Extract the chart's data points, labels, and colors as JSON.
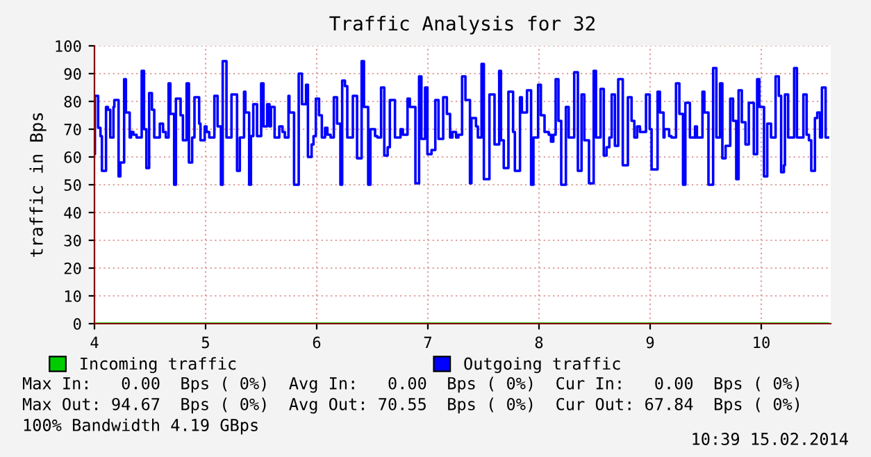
{
  "chart_data": {
    "type": "step",
    "title": "Traffic Analysis for 32",
    "ylabel": "traffic in Bps",
    "xlim": [
      4,
      10.625
    ],
    "xticks": [
      4,
      5,
      6,
      7,
      8,
      9,
      10
    ],
    "ylim": [
      0,
      100
    ],
    "yticks": [
      0,
      10,
      20,
      30,
      40,
      50,
      60,
      70,
      80,
      90,
      100
    ],
    "grid": true,
    "legend": "bottom",
    "series": [
      {
        "name": "Incoming traffic",
        "color": "#00cc00",
        "x": [
          4,
          10.6
        ],
        "values": [
          0,
          0
        ]
      },
      {
        "name": "Outgoing traffic",
        "color": "#0000ff",
        "x": [
          4.0,
          4.004,
          4.033,
          4.054,
          4.067,
          4.104,
          4.121,
          4.142,
          4.171,
          4.179,
          4.217,
          4.233,
          4.267,
          4.283,
          4.317,
          4.329,
          4.35,
          4.379,
          4.425,
          4.446,
          4.467,
          4.492,
          4.517,
          4.538,
          4.588,
          4.617,
          4.642,
          4.667,
          4.683,
          4.717,
          4.733,
          4.775,
          4.796,
          4.829,
          4.85,
          4.879,
          4.9,
          4.942,
          4.954,
          4.992,
          5.008,
          5.033,
          5.079,
          5.108,
          5.138,
          5.154,
          5.188,
          5.233,
          5.283,
          5.308,
          5.346,
          5.358,
          5.392,
          5.408,
          5.429,
          5.463,
          5.5,
          5.521,
          5.554,
          5.575,
          5.588,
          5.621,
          5.663,
          5.692,
          5.713,
          5.746,
          5.754,
          5.796,
          5.838,
          5.867,
          5.904,
          5.921,
          5.954,
          5.971,
          5.992,
          6.021,
          6.046,
          6.075,
          6.096,
          6.125,
          6.154,
          6.183,
          6.213,
          6.229,
          6.254,
          6.275,
          6.325,
          6.363,
          6.404,
          6.425,
          6.463,
          6.483,
          6.525,
          6.546,
          6.579,
          6.608,
          6.638,
          6.658,
          6.704,
          6.754,
          6.775,
          6.817,
          6.838,
          6.888,
          6.921,
          6.942,
          6.975,
          6.996,
          7.033,
          7.067,
          7.096,
          7.138,
          7.171,
          7.2,
          7.221,
          7.254,
          7.275,
          7.308,
          7.338,
          7.379,
          7.392,
          7.433,
          7.45,
          7.483,
          7.504,
          7.554,
          7.6,
          7.642,
          7.658,
          7.683,
          7.725,
          7.767,
          7.783,
          7.829,
          7.846,
          7.892,
          7.929,
          7.95,
          7.992,
          8.017,
          8.05,
          8.088,
          8.108,
          8.129,
          8.15,
          8.175,
          8.2,
          8.242,
          8.267,
          8.317,
          8.35,
          8.383,
          8.408,
          8.45,
          8.492,
          8.513,
          8.554,
          8.583,
          8.608,
          8.633,
          8.654,
          8.683,
          8.713,
          8.754,
          8.8,
          8.833,
          8.858,
          8.883,
          8.908,
          8.963,
          8.996,
          9.013,
          9.067,
          9.088,
          9.121,
          9.129,
          9.171,
          9.192,
          9.233,
          9.263,
          9.296,
          9.317,
          9.358,
          9.404,
          9.421,
          9.471,
          9.488,
          9.525,
          9.567,
          9.596,
          9.629,
          9.65,
          9.679,
          9.721,
          9.746,
          9.775,
          9.796,
          9.825,
          9.858,
          9.888,
          9.933,
          9.963,
          9.983,
          10.025,
          10.054,
          10.088,
          10.129,
          10.158,
          10.179,
          10.204,
          10.213,
          10.242,
          10.296,
          10.321,
          10.379,
          10.408,
          10.429,
          10.45,
          10.483,
          10.504,
          10.529,
          10.546,
          10.579,
          10.6
        ],
        "values": [
          61,
          82,
          70.5,
          67.5,
          55,
          78,
          77,
          67,
          78,
          80.5,
          53,
          58,
          88,
          76,
          67,
          69,
          68,
          67,
          91,
          70,
          56,
          83,
          77,
          67,
          72,
          69,
          67,
          86.5,
          75.5,
          50,
          81,
          75,
          66,
          86.5,
          58,
          67,
          81.5,
          72,
          66,
          71,
          69,
          67,
          82,
          71,
          50,
          94.5,
          67,
          82.5,
          55,
          67,
          83.5,
          76,
          50,
          67.5,
          79,
          67.5,
          86.5,
          71,
          79,
          71,
          78,
          67,
          71,
          69,
          67,
          82,
          76,
          50,
          90,
          79,
          86,
          60,
          64.5,
          67.5,
          81,
          75,
          67,
          70.5,
          68,
          67,
          81.5,
          72,
          50,
          87.5,
          85.5,
          67,
          82,
          59.5,
          94.5,
          78,
          50,
          70,
          67.5,
          67,
          85,
          60.5,
          63.5,
          80.5,
          67,
          70,
          68,
          81,
          78,
          50.5,
          89,
          66.5,
          85,
          61,
          62.5,
          80.5,
          66.5,
          81.5,
          75.5,
          67,
          69,
          67,
          68,
          89,
          80.5,
          50.5,
          74,
          71,
          67,
          93.5,
          52,
          82.5,
          64.5,
          91,
          66,
          56,
          83.5,
          69,
          55,
          81.5,
          76,
          84,
          50,
          67,
          86,
          75,
          69,
          68,
          65.5,
          68,
          88,
          73,
          50,
          78,
          67,
          90.5,
          55,
          82.5,
          66,
          50.5,
          91,
          67,
          84.5,
          60.5,
          63.5,
          67,
          82.5,
          64,
          88,
          57,
          81.5,
          73,
          67,
          71,
          69,
          82.5,
          70,
          55.5,
          83.5,
          76,
          67,
          70,
          67.5,
          67,
          86.5,
          75.5,
          50,
          79.5,
          67,
          71,
          67,
          83.5,
          76,
          50,
          92,
          67,
          86.5,
          59.5,
          64,
          81,
          73,
          52,
          84,
          72.5,
          64.5,
          79.5,
          61,
          88,
          78,
          53,
          72,
          67,
          89,
          82,
          54.5,
          57,
          82.5,
          67,
          92,
          67,
          82.5,
          68,
          66,
          55,
          74,
          76,
          67,
          85,
          67,
          67
        ]
      }
    ],
    "annotations": [
      "Max In:   0.00  Bps ( 0%)  Avg In:   0.00  Bps ( 0%)  Cur In:   0.00  Bps ( 0%)",
      "Max Out: 94.67  Bps ( 0%)  Avg Out: 70.55  Bps ( 0%)  Cur Out: 67.84  Bps ( 0%)",
      "100% Bandwidth 4.19 GBps",
      "10:39 15.02.2014"
    ]
  }
}
